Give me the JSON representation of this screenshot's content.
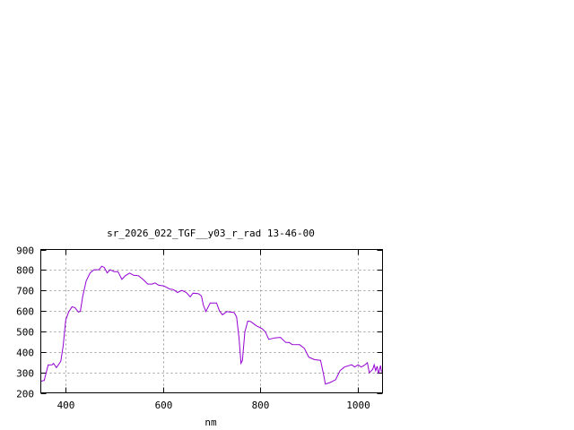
{
  "chart_data": {
    "type": "line",
    "title": "sr_2026_022_TGF__y03_r_rad 13-46-00",
    "xlabel": "nm",
    "ylabel": "",
    "xlim": [
      350,
      1050
    ],
    "ylim": [
      200,
      900
    ],
    "xticks": [
      400,
      600,
      800,
      1000
    ],
    "yticks": [
      200,
      300,
      400,
      500,
      600,
      700,
      800,
      900
    ],
    "grid": true,
    "line_color": "#9400d3",
    "grid_color": "#a0a0a0",
    "series": [
      {
        "x": [
          351,
          357,
          365,
          373,
          376,
          382,
          391,
          396,
          401,
          407,
          414,
          420,
          427,
          431,
          436,
          443,
          451,
          459,
          469,
          475,
          480,
          486,
          492,
          500,
          508,
          516,
          523,
          532,
          540,
          550,
          560,
          569,
          578,
          584,
          591,
          602,
          614,
          622,
          630,
          639,
          648,
          656,
          662,
          673,
          679,
          683,
          688,
          697,
          705,
          710,
          716,
          722,
          731,
          746,
          751,
          756,
          760,
          763,
          768,
          774,
          780,
          792,
          804,
          810,
          817,
          829,
          841,
          852,
          859,
          865,
          880,
          890,
          899,
          911,
          923,
          929,
          933,
          942,
          954,
          963,
          972,
          987,
          993,
          1000,
          1006,
          1012,
          1019,
          1023,
          1030,
          1033,
          1036,
          1039,
          1042,
          1046,
          1048
        ],
        "y": [
          257,
          261,
          336,
          337,
          344,
          323,
          354,
          432,
          556,
          594,
          620,
          616,
          594,
          598,
          673,
          747,
          786,
          801,
          801,
          818,
          812,
          786,
          801,
          792,
          792,
          754,
          772,
          785,
          774,
          772,
          753,
          731,
          731,
          737,
          726,
          722,
          707,
          704,
          690,
          700,
          690,
          669,
          687,
          684,
          673,
          629,
          597,
          639,
          639,
          639,
          600,
          581,
          597,
          592,
          571,
          468,
          344,
          359,
          497,
          551,
          548,
          527,
          512,
          497,
          461,
          468,
          471,
          446,
          446,
          436,
          435,
          417,
          374,
          362,
          359,
          293,
          243,
          250,
          264,
          308,
          326,
          337,
          326,
          337,
          326,
          333,
          347,
          298,
          315,
          337,
          308,
          330,
          293,
          333,
          301
        ]
      }
    ]
  }
}
